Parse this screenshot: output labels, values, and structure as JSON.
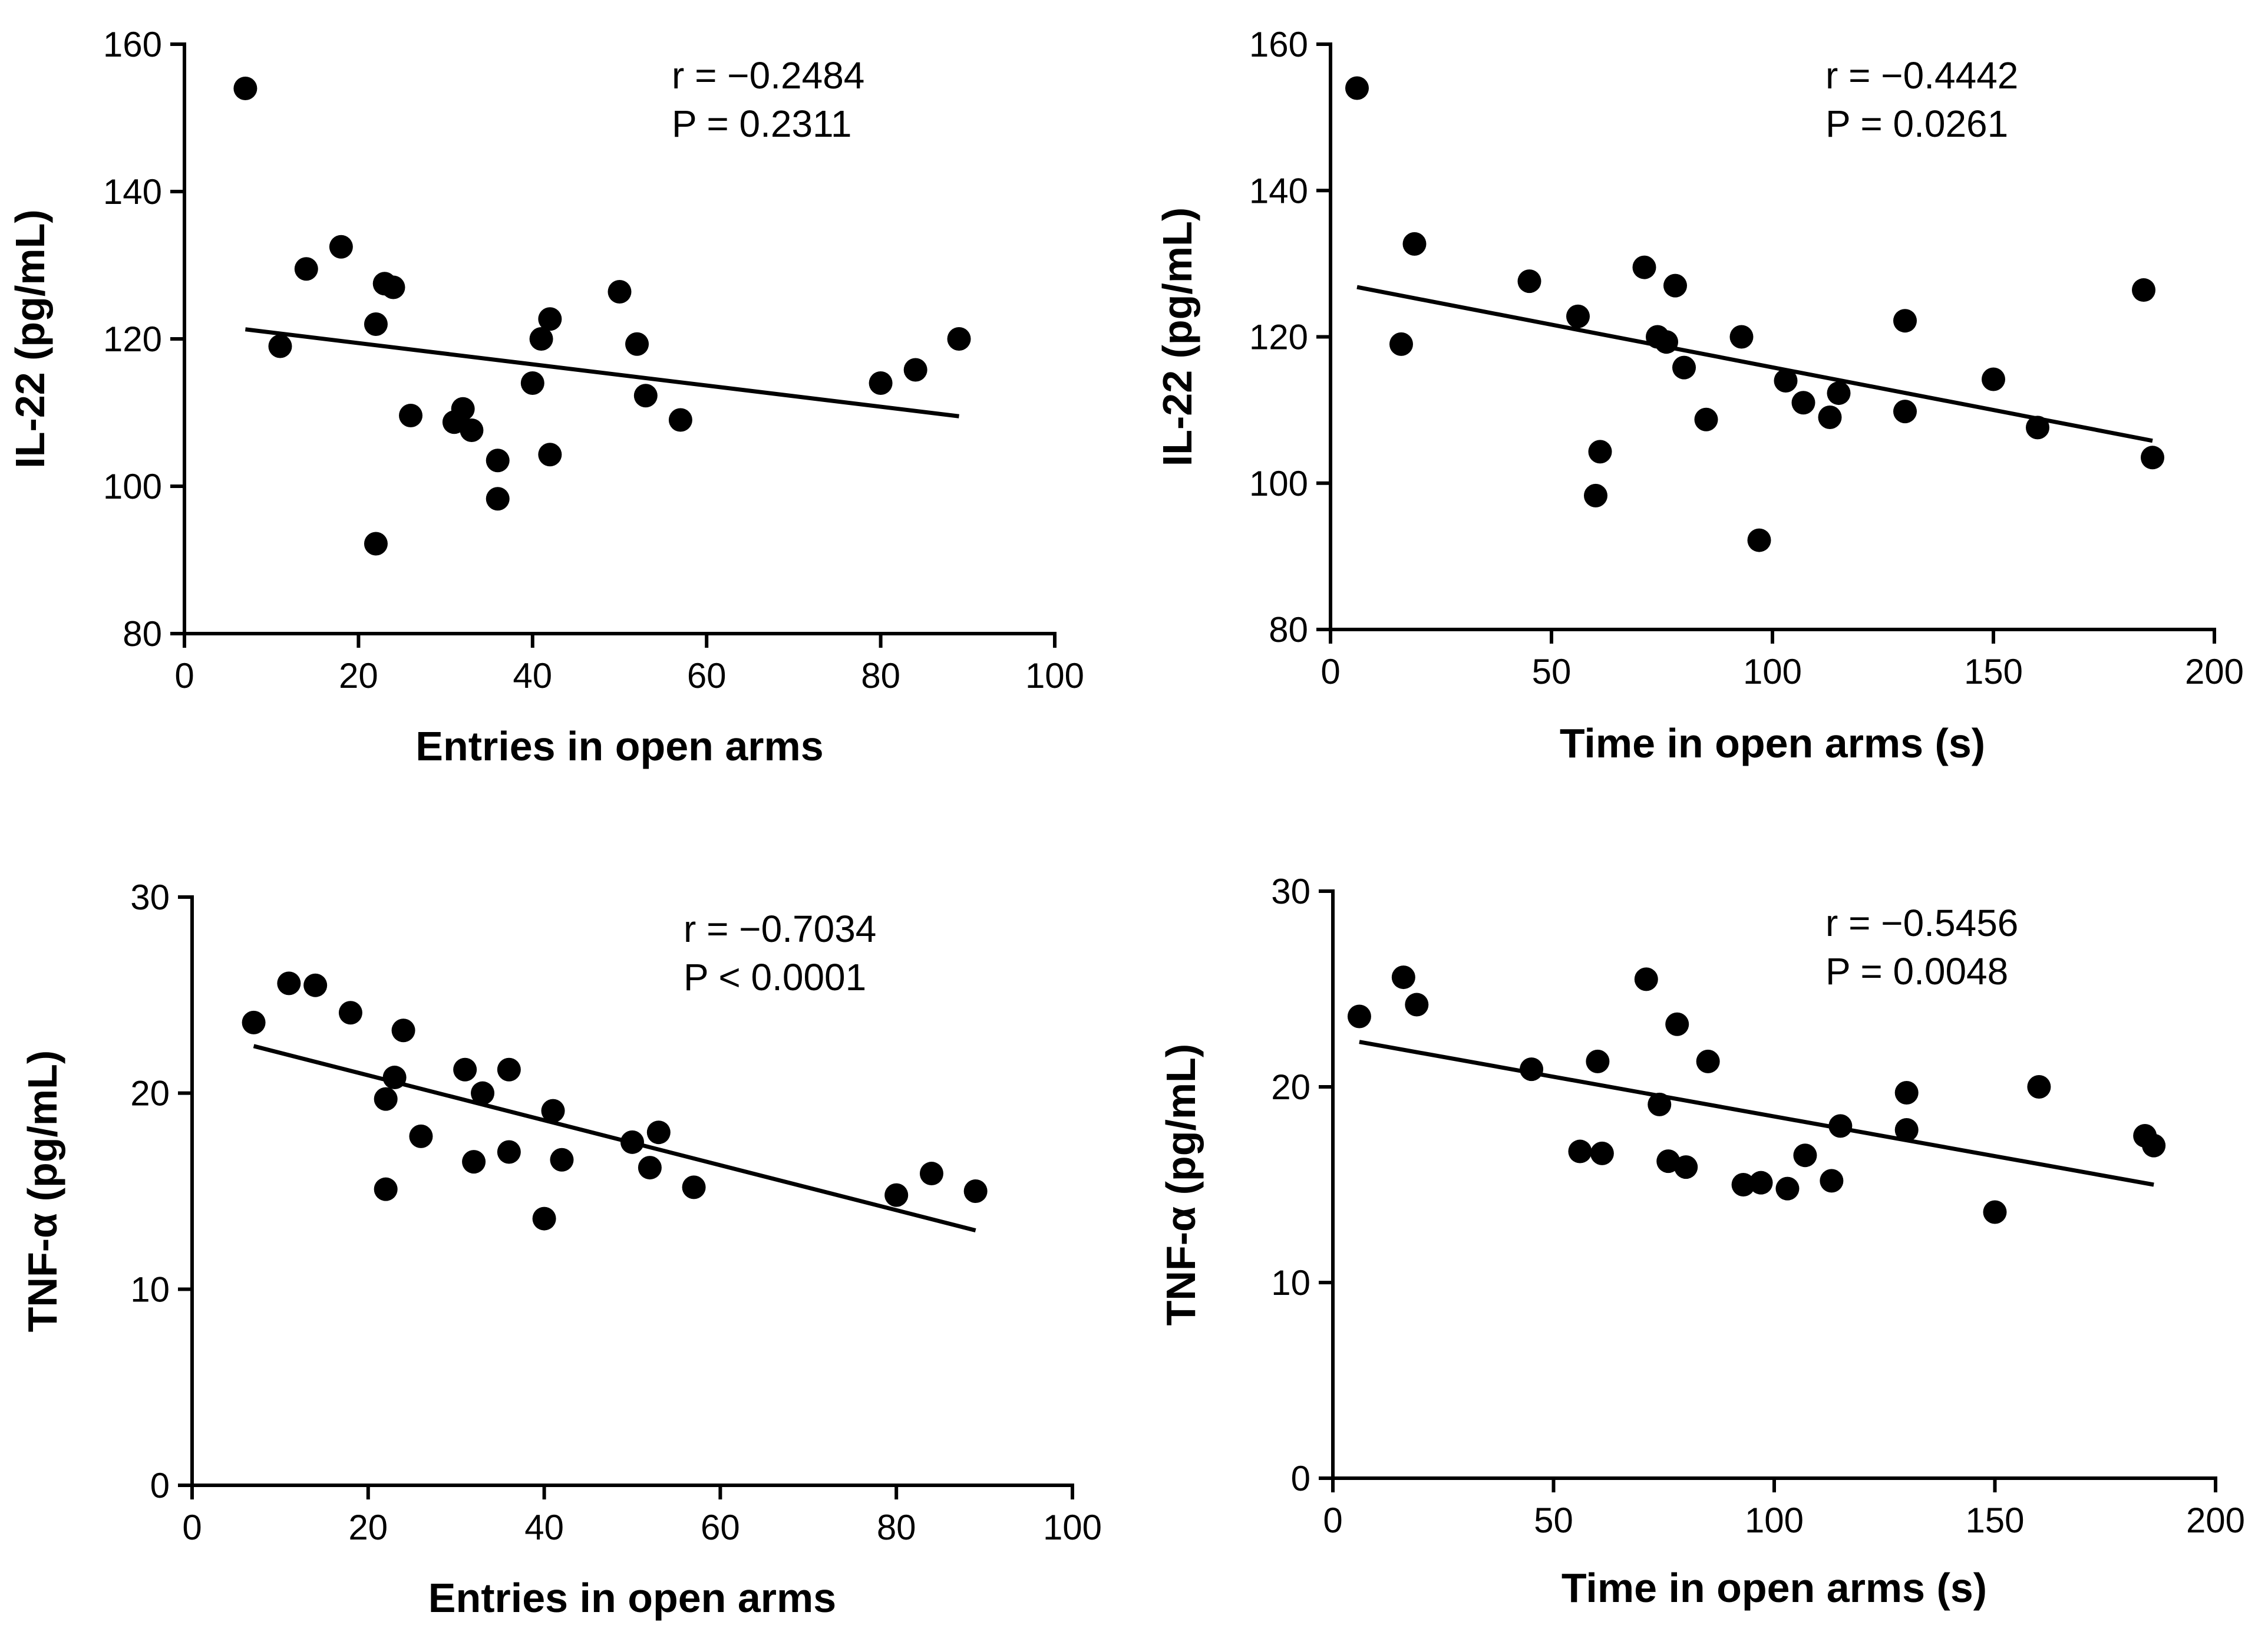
{
  "chart_data": [
    {
      "type": "scatter",
      "xlabel": "Entries in open arms",
      "ylabel": "IL-22 (pg/mL)",
      "xlim": [
        0,
        100
      ],
      "ylim": [
        80,
        160
      ],
      "xticks": [
        0,
        20,
        40,
        60,
        80,
        100
      ],
      "yticks": [
        80,
        100,
        120,
        140,
        160
      ],
      "xtick_labels": [
        "0",
        "20",
        "40",
        "60",
        "80",
        "100"
      ],
      "ytick_labels": [
        "80",
        "100",
        "120",
        "140",
        "160"
      ],
      "stats": {
        "r": "r = −0.2484",
        "p": "P = 0.2311"
      },
      "regression": {
        "x": [
          7,
          89
        ],
        "y": [
          121.3,
          109.5
        ]
      },
      "points": [
        [
          7,
          154
        ],
        [
          11,
          119
        ],
        [
          14,
          129.5
        ],
        [
          18,
          132.5
        ],
        [
          22,
          122
        ],
        [
          22,
          92.2
        ],
        [
          23,
          127.5
        ],
        [
          24,
          127
        ],
        [
          26,
          109.6
        ],
        [
          31,
          108.7
        ],
        [
          32,
          110.5
        ],
        [
          33,
          107.6
        ],
        [
          36,
          103.5
        ],
        [
          36,
          98.3
        ],
        [
          40,
          114
        ],
        [
          41,
          120
        ],
        [
          42,
          122.7
        ],
        [
          42,
          104.3
        ],
        [
          50,
          126.4
        ],
        [
          52,
          119.3
        ],
        [
          53,
          112.3
        ],
        [
          57,
          109
        ],
        [
          80,
          114
        ],
        [
          84,
          115.8
        ],
        [
          89,
          120
        ]
      ]
    },
    {
      "type": "scatter",
      "xlabel": "Time in open arms (s)",
      "ylabel": "IL-22 (pg/mL)",
      "xlim": [
        0,
        200
      ],
      "ylim": [
        80,
        160
      ],
      "xticks": [
        0,
        50,
        100,
        150,
        200
      ],
      "yticks": [
        80,
        100,
        120,
        140,
        160
      ],
      "xtick_labels": [
        "0",
        "50",
        "100",
        "150",
        "200"
      ],
      "ytick_labels": [
        "80",
        "100",
        "120",
        "140",
        "160"
      ],
      "stats": {
        "r": "r = −0.4442",
        "p": "P = 0.0261"
      },
      "regression": {
        "x": [
          6,
          186
        ],
        "y": [
          126.8,
          105.8
        ]
      },
      "points": [
        [
          6,
          154
        ],
        [
          16,
          119
        ],
        [
          19,
          132.7
        ],
        [
          45,
          127.6
        ],
        [
          56,
          122.8
        ],
        [
          60,
          98.3
        ],
        [
          61,
          104.3
        ],
        [
          71,
          129.5
        ],
        [
          74,
          120
        ],
        [
          76,
          119.3
        ],
        [
          78,
          127
        ],
        [
          80,
          115.8
        ],
        [
          85,
          108.7
        ],
        [
          93,
          120
        ],
        [
          97,
          92.2
        ],
        [
          103,
          114
        ],
        [
          107,
          111
        ],
        [
          113,
          109
        ],
        [
          115,
          112.3
        ],
        [
          130,
          109.8
        ],
        [
          130,
          122.2
        ],
        [
          150,
          114.2
        ],
        [
          160,
          107.6
        ],
        [
          184,
          126.4
        ],
        [
          186,
          103.5
        ]
      ]
    },
    {
      "type": "scatter",
      "xlabel": "Entries in open arms",
      "ylabel": "TNF-α (pg/mL)",
      "xlim": [
        0,
        100
      ],
      "ylim": [
        0,
        30
      ],
      "xticks": [
        0,
        20,
        40,
        60,
        80,
        100
      ],
      "yticks": [
        0,
        10,
        20,
        30
      ],
      "xtick_labels": [
        "0",
        "20",
        "40",
        "60",
        "80",
        "100"
      ],
      "ytick_labels": [
        "0",
        "10",
        "20",
        "30"
      ],
      "stats": {
        "r": "r = −0.7034",
        "p": "P < 0.0001"
      },
      "regression": {
        "x": [
          7,
          89
        ],
        "y": [
          22.4,
          13.0
        ]
      },
      "points": [
        [
          7,
          23.6
        ],
        [
          11,
          25.6
        ],
        [
          14,
          25.5
        ],
        [
          18,
          24.1
        ],
        [
          22,
          19.7
        ],
        [
          22,
          15.1
        ],
        [
          23,
          20.8
        ],
        [
          24,
          23.2
        ],
        [
          26,
          17.8
        ],
        [
          31,
          21.2
        ],
        [
          32,
          16.5
        ],
        [
          33,
          20
        ],
        [
          36,
          21.2
        ],
        [
          36,
          17
        ],
        [
          40,
          13.6
        ],
        [
          41,
          19.1
        ],
        [
          42,
          16.6
        ],
        [
          50,
          17.5
        ],
        [
          52,
          16.2
        ],
        [
          53,
          18
        ],
        [
          57,
          15.2
        ],
        [
          80,
          14.8
        ],
        [
          84,
          15.9
        ],
        [
          89,
          15
        ]
      ]
    },
    {
      "type": "scatter",
      "xlabel": "Time in open arms (s)",
      "ylabel": "TNF-α (pg/mL)",
      "xlim": [
        0,
        200
      ],
      "ylim": [
        0,
        30
      ],
      "xticks": [
        0,
        50,
        100,
        150,
        200
      ],
      "yticks": [
        0,
        10,
        20,
        30
      ],
      "xtick_labels": [
        "0",
        "50",
        "100",
        "150",
        "200"
      ],
      "ytick_labels": [
        "0",
        "10",
        "20",
        "30"
      ],
      "stats": {
        "r": "r = −0.5456",
        "p": "P = 0.0048"
      },
      "regression": {
        "x": [
          6,
          186
        ],
        "y": [
          22.3,
          15.0
        ]
      },
      "points": [
        [
          6,
          23.6
        ],
        [
          16,
          25.6
        ],
        [
          19,
          24.2
        ],
        [
          45,
          20.9
        ],
        [
          56,
          16.7
        ],
        [
          60,
          21.3
        ],
        [
          61,
          16.6
        ],
        [
          71,
          25.5
        ],
        [
          74,
          19.1
        ],
        [
          76,
          16.2
        ],
        [
          78,
          23.2
        ],
        [
          80,
          15.9
        ],
        [
          85,
          21.3
        ],
        [
          93,
          15
        ],
        [
          97,
          15.1
        ],
        [
          103,
          14.8
        ],
        [
          107,
          16.5
        ],
        [
          113,
          15.2
        ],
        [
          115,
          18
        ],
        [
          130,
          17.8
        ],
        [
          130,
          19.7
        ],
        [
          150,
          13.6
        ],
        [
          160,
          20
        ],
        [
          184,
          17.5
        ],
        [
          186,
          17
        ]
      ]
    }
  ]
}
